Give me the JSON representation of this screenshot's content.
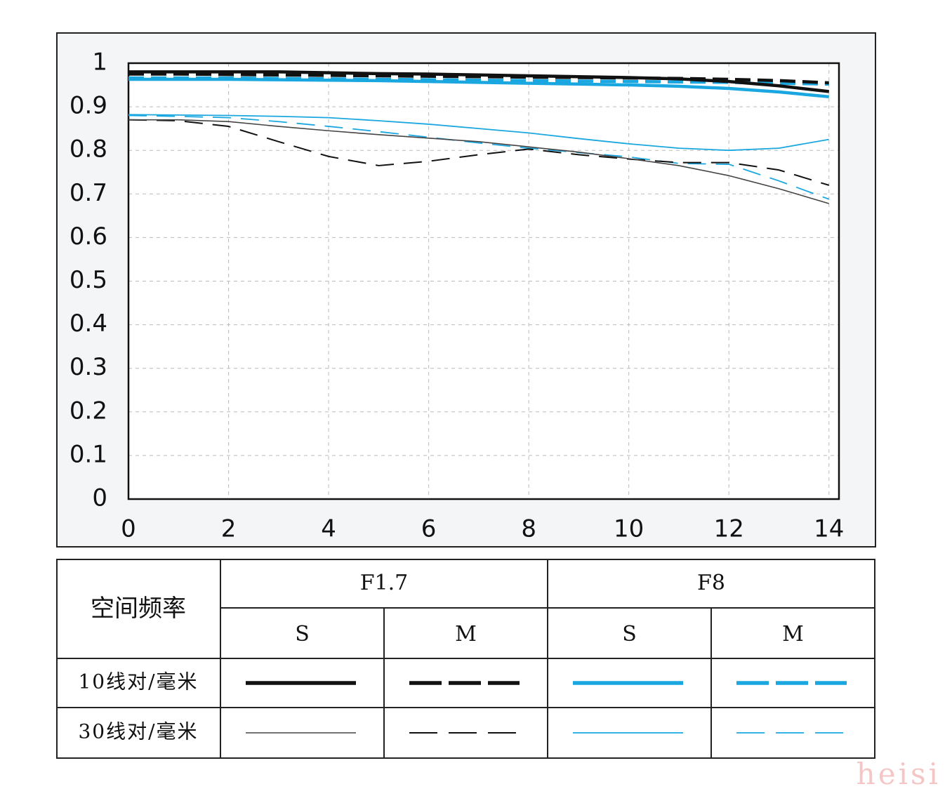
{
  "chart_data": {
    "type": "line",
    "x": [
      0,
      1,
      2,
      3,
      4,
      5,
      6,
      7,
      8,
      9,
      10,
      11,
      12,
      13,
      14
    ],
    "xlim": [
      0,
      14.2
    ],
    "xticks": [
      0,
      2,
      4,
      6,
      8,
      10,
      12,
      14
    ],
    "ylim": [
      0,
      1
    ],
    "yticks": [
      0,
      0.1,
      0.2,
      0.3,
      0.4,
      0.5,
      0.6,
      0.7,
      0.8,
      0.9,
      1
    ],
    "grid": true,
    "series": [
      {
        "color": "#111111",
        "width": 4.5,
        "dash": false,
        "values": [
          0.98,
          0.98,
          0.98,
          0.98,
          0.978,
          0.976,
          0.975,
          0.973,
          0.971,
          0.969,
          0.967,
          0.964,
          0.958,
          0.948,
          0.935
        ]
      },
      {
        "color": "#111111",
        "width": 4.5,
        "dash": true,
        "values": [
          0.975,
          0.975,
          0.974,
          0.973,
          0.972,
          0.971,
          0.97,
          0.969,
          0.968,
          0.967,
          0.966,
          0.965,
          0.963,
          0.96,
          0.955
        ]
      },
      {
        "color": "#1aa7e0",
        "width": 4.5,
        "dash": false,
        "values": [
          0.963,
          0.963,
          0.963,
          0.962,
          0.961,
          0.96,
          0.958,
          0.956,
          0.954,
          0.952,
          0.95,
          0.947,
          0.942,
          0.934,
          0.923
        ]
      },
      {
        "color": "#1aa7e0",
        "width": 4.5,
        "dash": true,
        "values": [
          0.966,
          0.966,
          0.966,
          0.965,
          0.964,
          0.963,
          0.962,
          0.961,
          0.96,
          0.959,
          0.958,
          0.957,
          0.956,
          0.954,
          0.952
        ]
      },
      {
        "color": "#444444",
        "width": 1.6,
        "dash": false,
        "values": [
          0.87,
          0.87,
          0.866,
          0.855,
          0.845,
          0.836,
          0.828,
          0.82,
          0.808,
          0.796,
          0.781,
          0.765,
          0.742,
          0.712,
          0.678
        ]
      },
      {
        "color": "#111111",
        "width": 2,
        "dash": true,
        "values": [
          0.87,
          0.868,
          0.855,
          0.82,
          0.786,
          0.765,
          0.775,
          0.79,
          0.803,
          0.79,
          0.78,
          0.772,
          0.772,
          0.755,
          0.72
        ]
      },
      {
        "color": "#1aa7e0",
        "width": 1.8,
        "dash": false,
        "values": [
          0.882,
          0.881,
          0.88,
          0.878,
          0.875,
          0.868,
          0.86,
          0.85,
          0.84,
          0.827,
          0.815,
          0.805,
          0.8,
          0.805,
          0.825
        ]
      },
      {
        "color": "#1aa7e0",
        "width": 1.8,
        "dash": true,
        "values": [
          0.88,
          0.878,
          0.875,
          0.866,
          0.855,
          0.843,
          0.83,
          0.817,
          0.805,
          0.795,
          0.785,
          0.77,
          0.768,
          0.73,
          0.688
        ]
      }
    ]
  },
  "legend_table": {
    "header": "空间频率",
    "groups": [
      "F1.7",
      "F8"
    ],
    "subheaders": [
      "S",
      "M",
      "S",
      "M"
    ],
    "rows": [
      "10线对/毫米",
      "30线对/毫米"
    ]
  },
  "watermark": "heisi"
}
